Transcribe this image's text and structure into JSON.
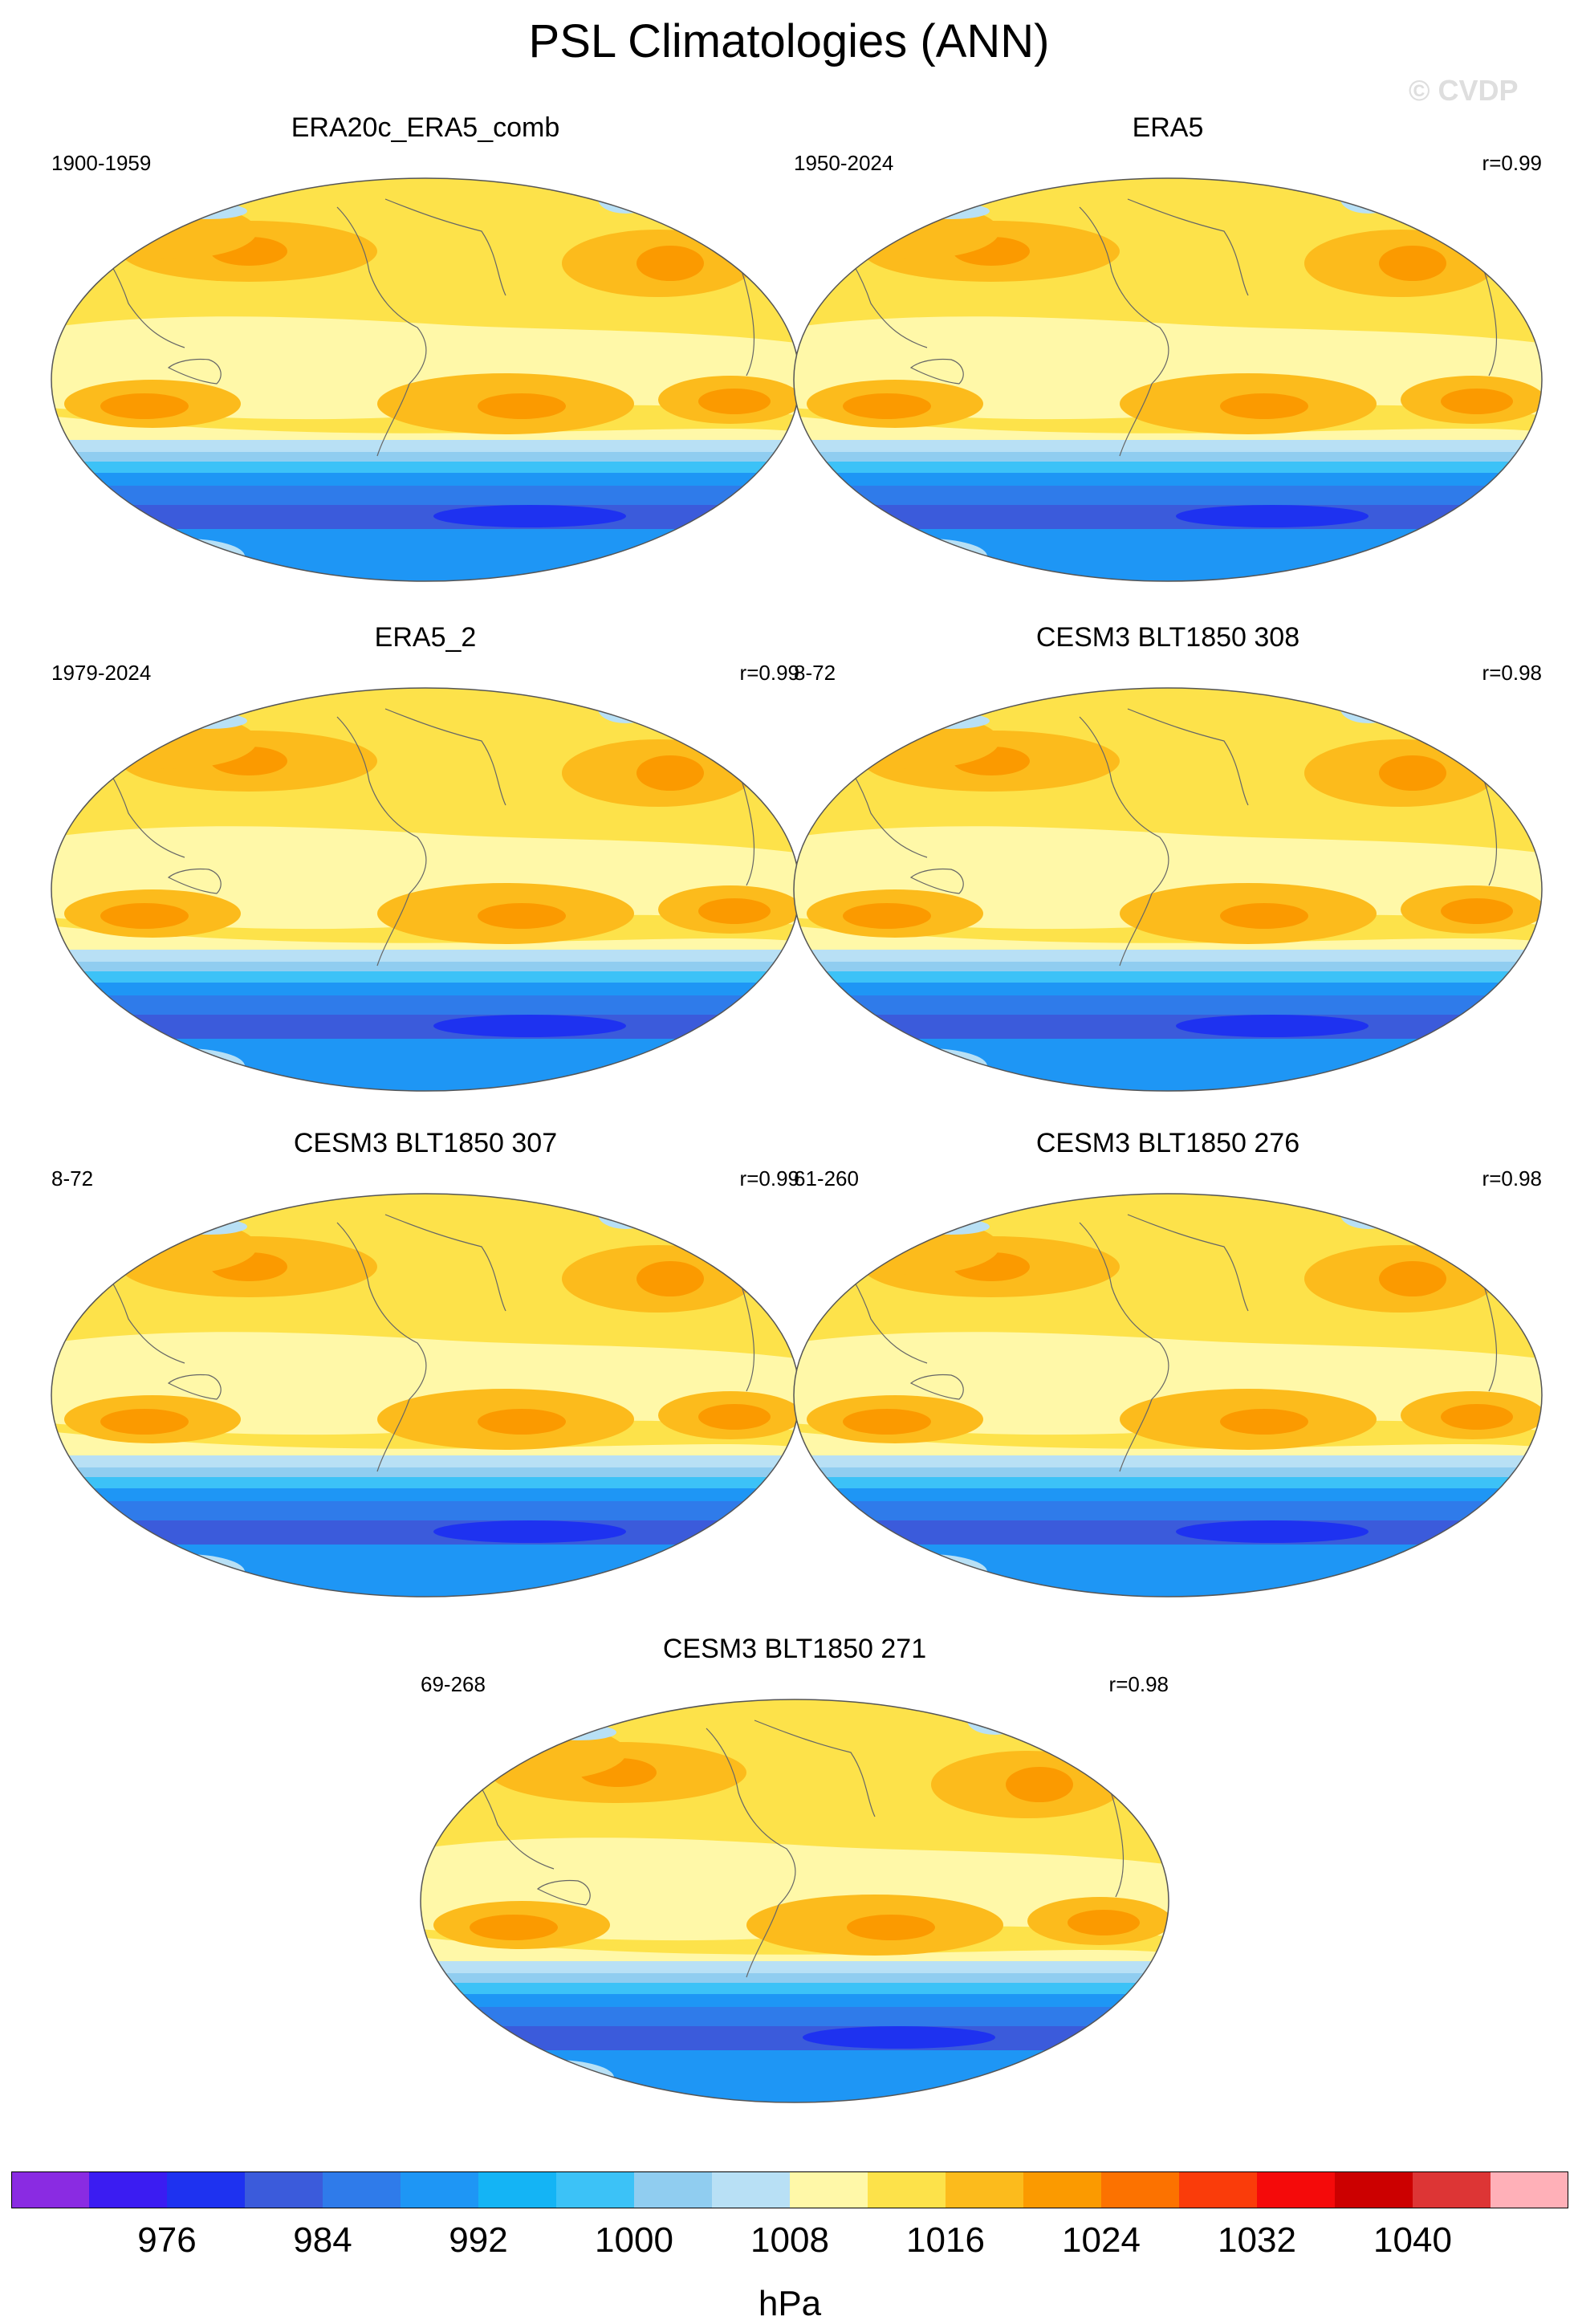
{
  "page": {
    "title": "PSL Climatologies (ANN)",
    "watermark": "© CVDP"
  },
  "chart_data": {
    "type": "map",
    "variable": "PSL",
    "season": "ANN",
    "colorbar": {
      "unit": "hPa",
      "labels": [
        "976",
        "984",
        "992",
        "1000",
        "1008",
        "1016",
        "1024",
        "1032",
        "1040"
      ],
      "colors": [
        "#8a2be2",
        "#3b1cf2",
        "#1e32f0",
        "#3b5bdb",
        "#2f7bea",
        "#1e96f5",
        "#14b4f5",
        "#3cc2f7",
        "#90cdf0",
        "#b8e0f5",
        "#fff8a8",
        "#fde24a",
        "#fcbb1c",
        "#fb9a00",
        "#fc7200",
        "#fa3c0a",
        "#f50a0a",
        "#cc0000",
        "#dd3535",
        "#ffb0b8"
      ],
      "levels": [
        972,
        976,
        980,
        984,
        988,
        992,
        996,
        1000,
        1004,
        1008,
        1012,
        1016,
        1020,
        1024,
        1028,
        1032,
        1036,
        1040,
        1044
      ]
    },
    "panels": [
      {
        "title": "ERA20c_ERA5_comb",
        "period": "1900-1959",
        "r": ""
      },
      {
        "title": "ERA5",
        "period": "1950-2024",
        "r": "r=0.99"
      },
      {
        "title": "ERA5_2",
        "period": "1979-2024",
        "r": "r=0.99"
      },
      {
        "title": "CESM3 BLT1850 308",
        "period": "8-72",
        "r": "r=0.98"
      },
      {
        "title": "CESM3 BLT1850 307",
        "period": "8-72",
        "r": "r=0.99"
      },
      {
        "title": "CESM3 BLT1850 276",
        "period": "61-260",
        "r": "r=0.98"
      },
      {
        "title": "CESM3 BLT1850 271",
        "period": "69-268",
        "r": "r=0.98"
      }
    ]
  }
}
